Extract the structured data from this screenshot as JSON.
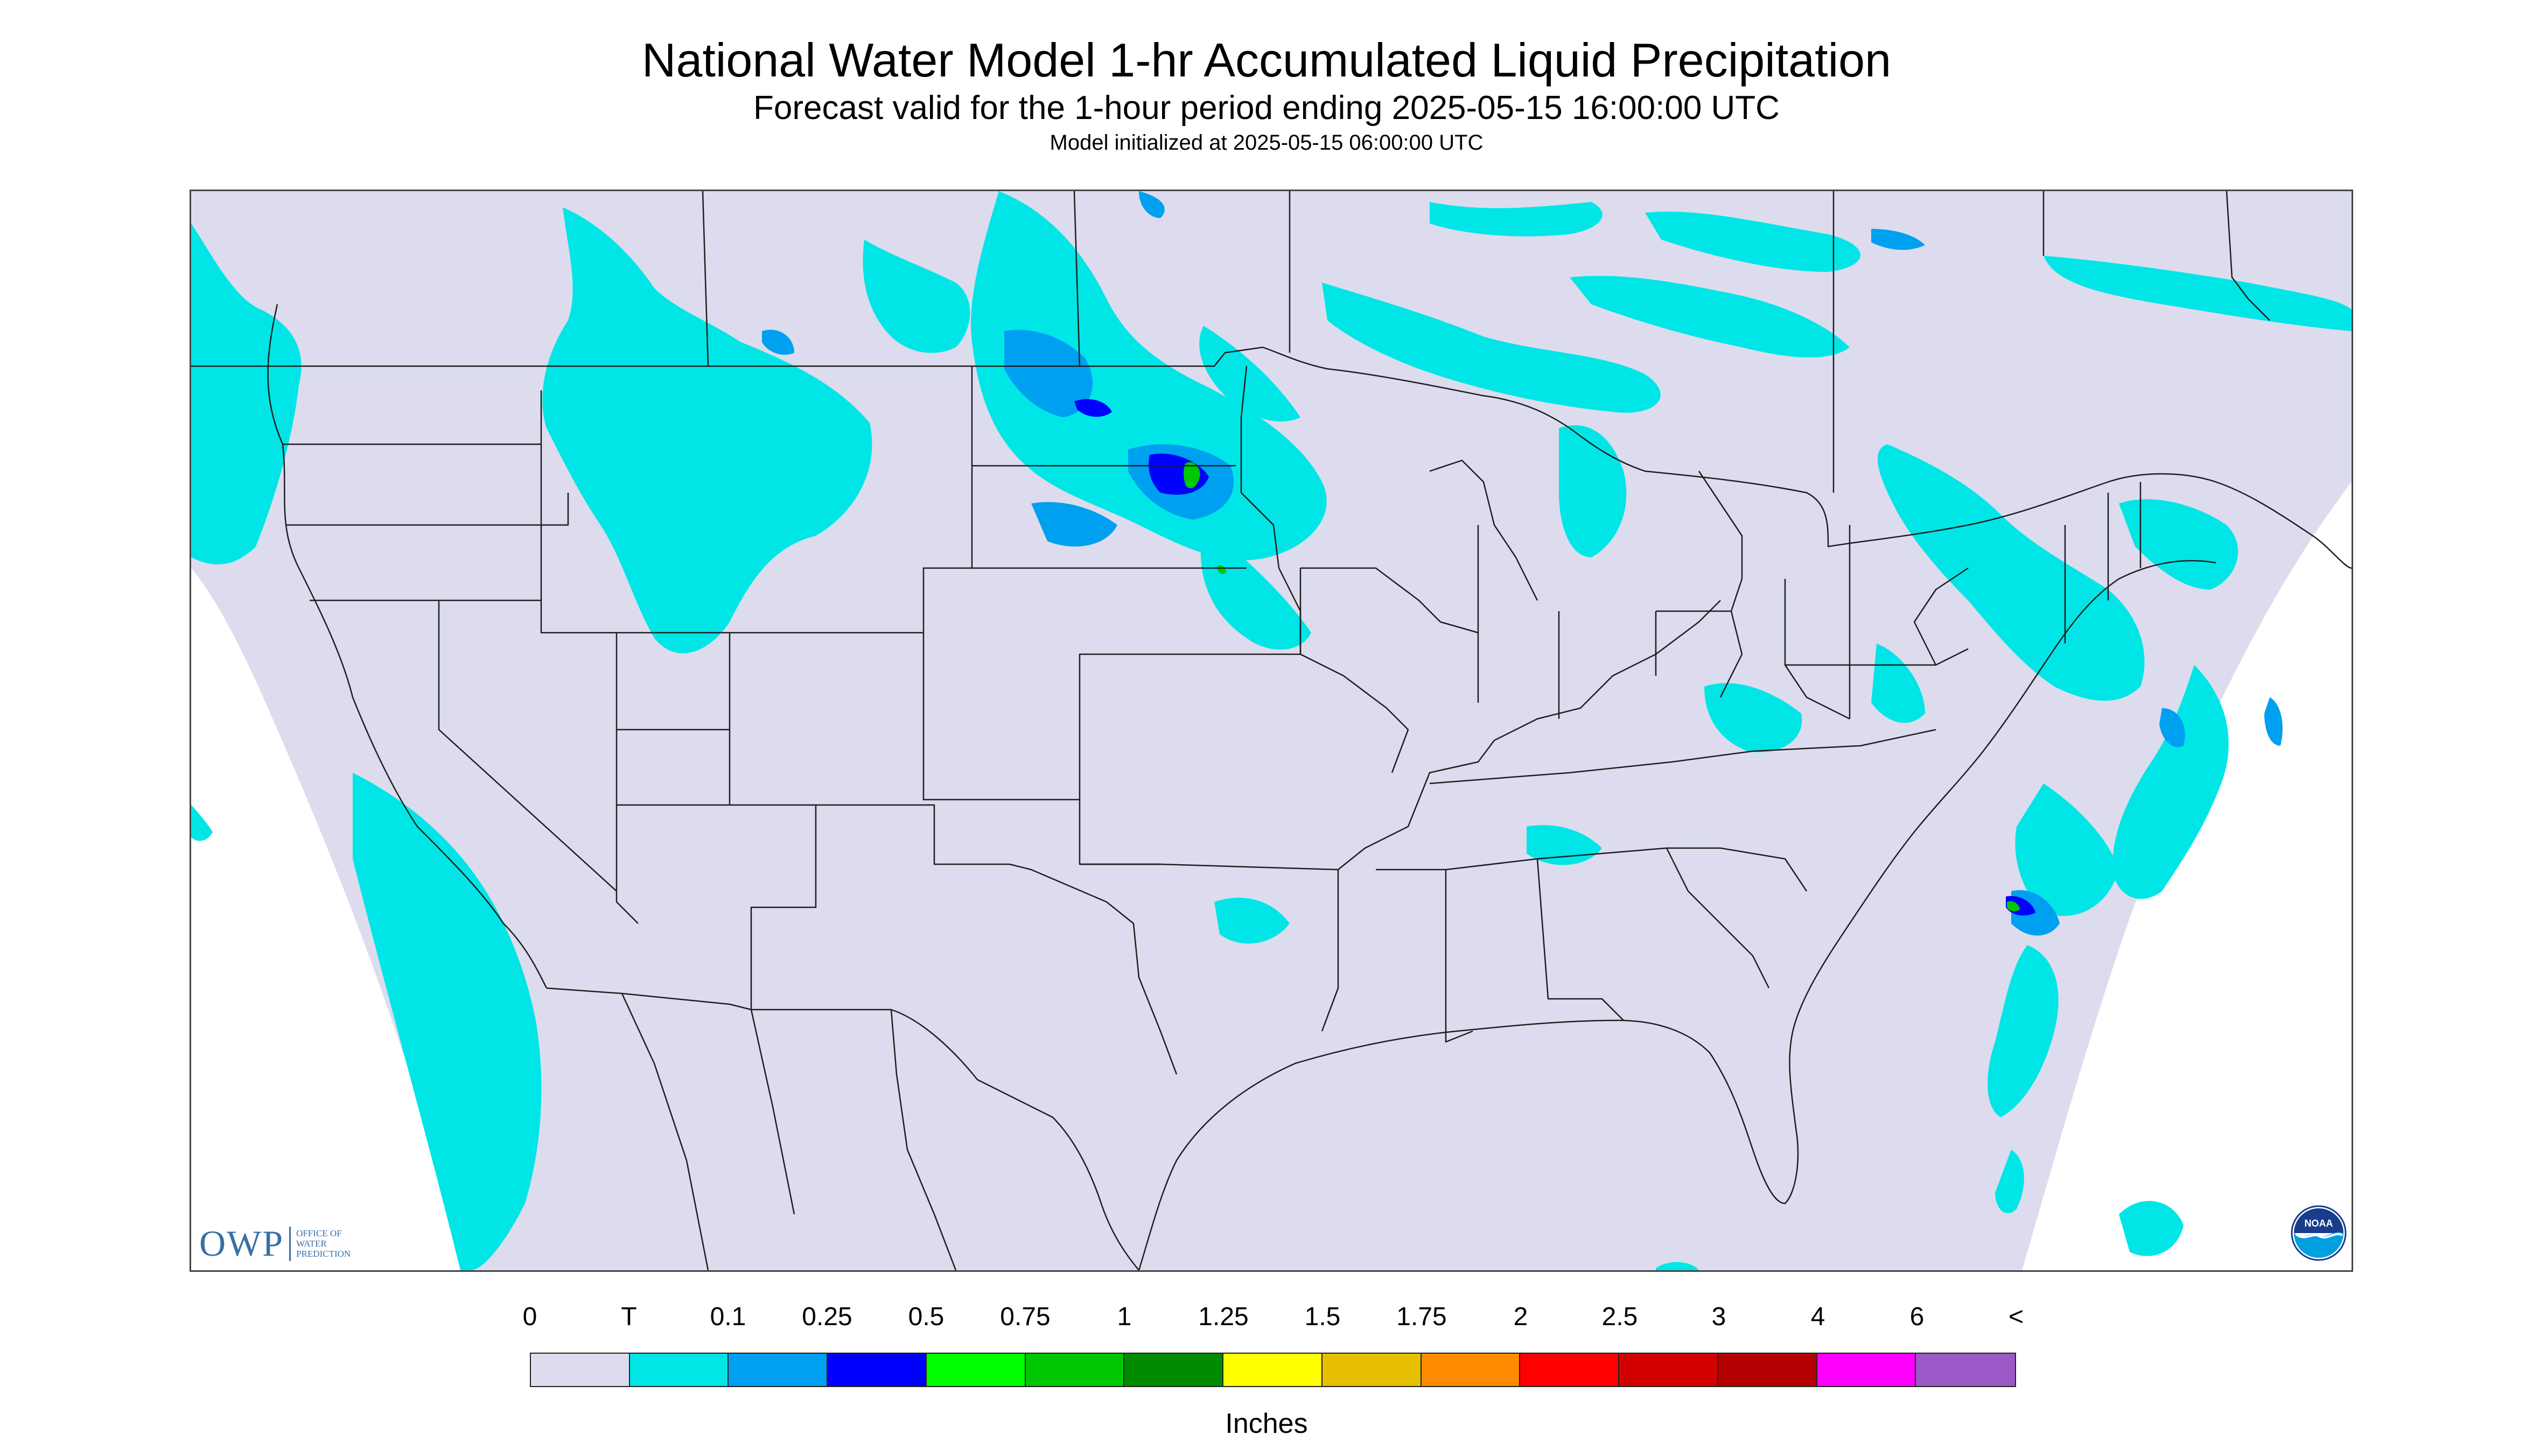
{
  "title": "National Water Model 1-hr Accumulated Liquid Precipitation",
  "subtitle": "Forecast valid for the 1-hour period ending 2025-05-15 16:00:00 UTC",
  "init_line": "Model initialized at 2025-05-15 06:00:00 UTC",
  "logos": {
    "owp_mark": "OWP",
    "owp_lines": [
      "OFFICE OF",
      "WATER",
      "PREDICTION"
    ],
    "noaa_text": "NOAA"
  },
  "legend": {
    "labels": [
      "0",
      "T",
      "0.1",
      "0.25",
      "0.5",
      "0.75",
      "1",
      "1.25",
      "1.5",
      "1.75",
      "2",
      "2.5",
      "3",
      "4",
      "6",
      "<"
    ],
    "colors": [
      "#dcdcee",
      "#00e6e6",
      "#00a0f0",
      "#0000ff",
      "#00ff00",
      "#00c800",
      "#008c00",
      "#ffff00",
      "#e6c000",
      "#ff8c00",
      "#ff0000",
      "#d20000",
      "#b40000",
      "#ff00ff",
      "#9b59c8"
    ],
    "units": "Inches"
  },
  "map": {
    "colors": {
      "background_fill": "#dcdcee",
      "offgrid": "#ffffff",
      "border_line": "#1e1e1e",
      "trace": "#00e6e6",
      "light": "#00a0f0",
      "moderate": "#0000ff",
      "heavy": "#00c800"
    }
  }
}
